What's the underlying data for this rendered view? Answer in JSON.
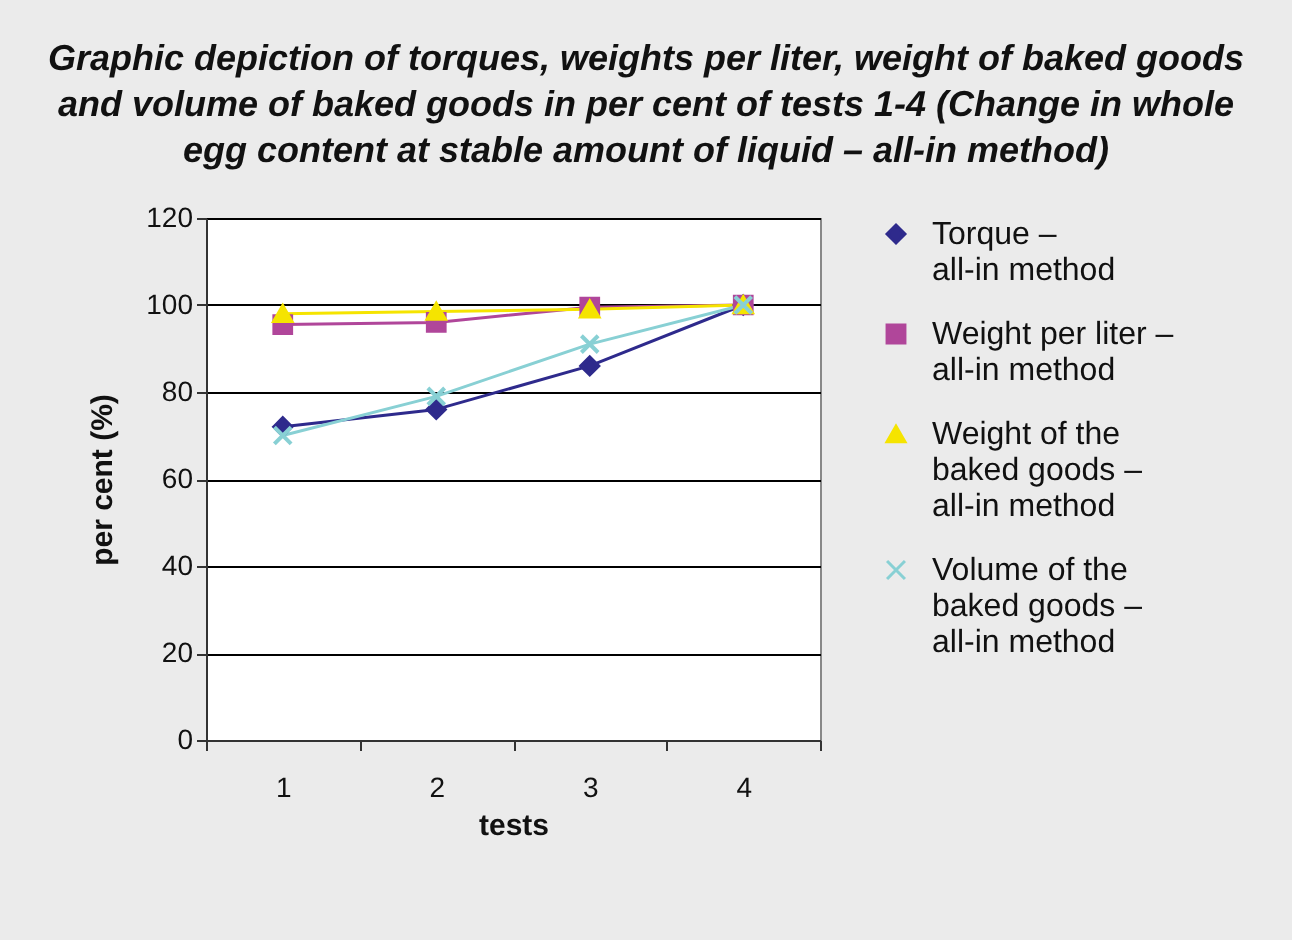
{
  "chart_data": {
    "type": "line",
    "title": "Graphic depiction of torques, weights per liter, weight of baked goods and volume of baked goods in per cent of tests 1-4 (Change in whole egg content at stable amount of liquid – all-in method)",
    "xlabel": "tests",
    "ylabel": "per cent (%)",
    "categories": [
      "1",
      "2",
      "3",
      "4"
    ],
    "series": [
      {
        "name": "Torque – all-in method",
        "color": "#2e2a8c",
        "marker": "diamond",
        "values": [
          72,
          76,
          86,
          100
        ]
      },
      {
        "name": "Weight per liter – all-in method",
        "color": "#b0469a",
        "marker": "square",
        "values": [
          95.5,
          96,
          99.5,
          100
        ]
      },
      {
        "name": "Weight of the baked goods – all-in method",
        "color": "#f5e400",
        "marker": "triangle",
        "values": [
          98,
          98.5,
          99,
          100
        ]
      },
      {
        "name": "Volume of the baked goods – all-in method",
        "color": "#88d0d4",
        "marker": "cross",
        "values": [
          70,
          79,
          91,
          100
        ]
      }
    ],
    "ylim": [
      0,
      120
    ],
    "yticks": [
      0,
      20,
      40,
      60,
      80,
      100,
      120
    ],
    "grid": "y",
    "legend": "right"
  }
}
